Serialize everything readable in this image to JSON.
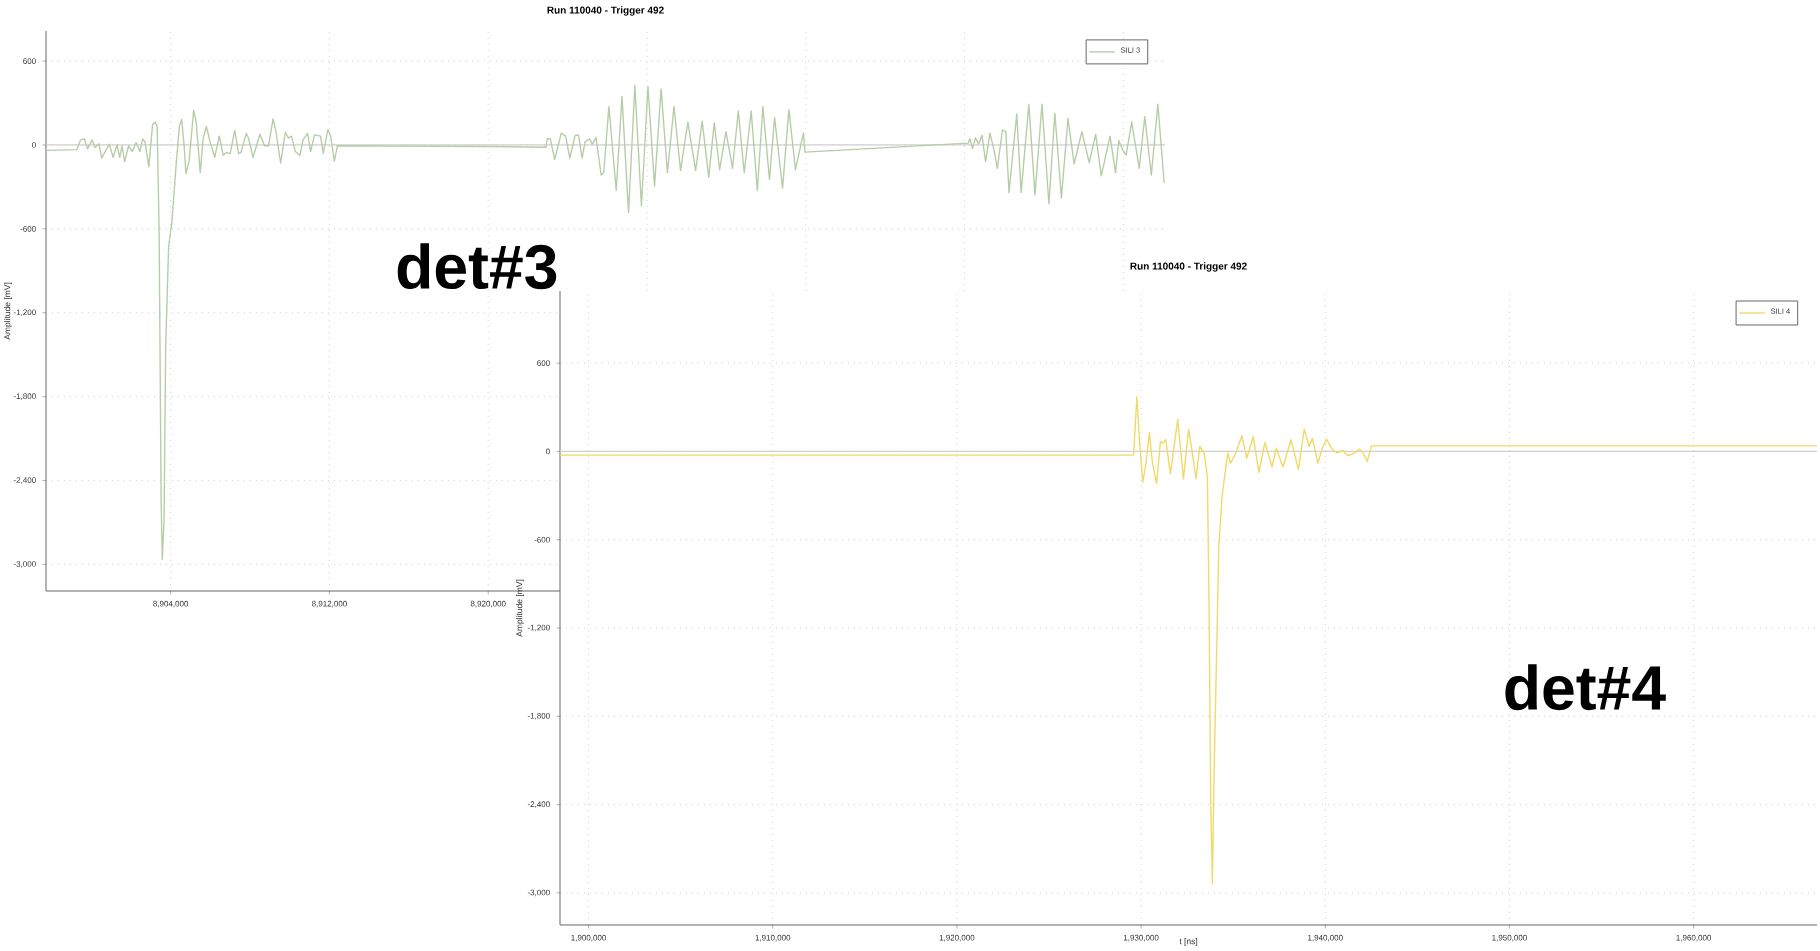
{
  "chart_data": [
    {
      "type": "line",
      "title": "Run 110040 - Trigger 492",
      "ylabel": "Amplitude [mV]",
      "annotations": [
        "det#3"
      ],
      "x": [
        8897720,
        8899270,
        8899460,
        8899650,
        8899810,
        8900040,
        8900190,
        8900390,
        8900520,
        8900910,
        8901100,
        8901300,
        8901430,
        8901550,
        8901680,
        8901880,
        8902070,
        8902260,
        8902450,
        8902590,
        8902710,
        8902900,
        8903090,
        8903230,
        8903320,
        8903420,
        8903520,
        8903580,
        8903670,
        8903750,
        8903900,
        8904060,
        8904290,
        8904440,
        8904560,
        8904680,
        8904770,
        8904930,
        8905160,
        8905290,
        8905490,
        8905640,
        8905800,
        8905990,
        8906220,
        8906450,
        8906650,
        8906800,
        8907000,
        8907230,
        8907420,
        8907540,
        8907810,
        8907920,
        8908150,
        8908500,
        8908730,
        8908930,
        8909160,
        8909310,
        8909540,
        8909780,
        8909930,
        8910090,
        8910280,
        8910510,
        8910670,
        8910900,
        8911050,
        8911250,
        8911550,
        8911690,
        8911920,
        8912060,
        8912250,
        8912400,
        8919940,
        8922910,
        8922980,
        8923130,
        8923350,
        8923680,
        8923900,
        8924110,
        8924380,
        8924550,
        8924730,
        8924880,
        8925100,
        8925250,
        8925430,
        8925690,
        8925820,
        8926080,
        8926450,
        8926740,
        8927070,
        8927390,
        8927720,
        8928050,
        8928380,
        8928710,
        8929030,
        8929360,
        8929690,
        8930060,
        8930450,
        8930780,
        8931110,
        8931390,
        8931660,
        8931980,
        8932310,
        8932600,
        8932900,
        8933250,
        8933560,
        8933840,
        8934170,
        8934430,
        8934830,
        8935150,
        8935480,
        8935880,
        8935960,
        8944180,
        8944270,
        8944400,
        8944550,
        8944710,
        8944880,
        8945060,
        8945280,
        8945490,
        8945650,
        8945910,
        8946080,
        8946240,
        8946630,
        8946850,
        8947240,
        8947550,
        8947900,
        8948250,
        8948550,
        8948880,
        8949210,
        8949520,
        8949910,
        8950280,
        8950610,
        8950890,
        8951330,
        8951610,
        8951770,
        8951990,
        8952140,
        8952420,
        8952800,
        8953080,
        8953410,
        8953740,
        8954060
      ],
      "series": [
        {
          "name": "SILI 3",
          "color": "#b5cda6",
          "values": [
            -39,
            -33,
            36,
            44,
            -28,
            36,
            -19,
            8,
            -94,
            6,
            -88,
            0,
            -88,
            -6,
            -121,
            -6,
            -47,
            17,
            -47,
            44,
            22,
            -157,
            146,
            165,
            132,
            -611,
            -2537,
            -2964,
            -2675,
            -1437,
            -721,
            -556,
            -116,
            132,
            182,
            -6,
            -206,
            -116,
            248,
            160,
            -198,
            50,
            132,
            22,
            -88,
            63,
            -74,
            -55,
            -61,
            105,
            -61,
            -55,
            83,
            50,
            -88,
            77,
            -6,
            -6,
            187,
            91,
            -129,
            91,
            50,
            63,
            -47,
            -74,
            36,
            83,
            -47,
            72,
            63,
            -61,
            110,
            63,
            -116,
            -6,
            -11,
            -16,
            44,
            44,
            -104,
            85,
            63,
            -95,
            69,
            69,
            -95,
            22,
            44,
            6,
            54,
            -215,
            -199,
            275,
            -325,
            347,
            -483,
            426,
            -436,
            417,
            -294,
            401,
            -199,
            275,
            -183,
            164,
            -183,
            170,
            -230,
            158,
            -177,
            95,
            -167,
            243,
            -199,
            243,
            -325,
            275,
            -246,
            196,
            -309,
            253,
            -177,
            85,
            -51,
            13,
            44,
            -25,
            51,
            6,
            69,
            -120,
            85,
            -41,
            -167,
            107,
            95,
            -341,
            221,
            -341,
            291,
            -357,
            291,
            -420,
            227,
            -379,
            189,
            -136,
            95,
            -126,
            76,
            -221,
            63,
            -199,
            32,
            -41,
            -73,
            164,
            -167,
            202,
            -215,
            291,
            -272
          ]
        }
      ],
      "xlim": [
        8897720,
        8954100
      ],
      "ylim": [
        -3190,
        815
      ],
      "xticks": [
        {
          "value": 8904000,
          "label": "8,904,000"
        },
        {
          "value": 8912000,
          "label": "8,912,000"
        },
        {
          "value": 8920000,
          "label": "8,920,000"
        },
        {
          "value": 8928000,
          "label": null
        },
        {
          "value": 8936000,
          "label": null
        },
        {
          "value": 8944000,
          "label": null
        },
        {
          "value": 8952000,
          "label": null
        }
      ],
      "yticks": [
        600,
        0,
        -600,
        {
          "value": -1200,
          "label": "-1,200"
        },
        {
          "value": -1800,
          "label": "-1,800"
        },
        {
          "value": -2400,
          "label": "-2,400"
        },
        {
          "value": -3000,
          "label": "-3,000"
        }
      ],
      "grid": true,
      "legend": "top right",
      "marker": "none",
      "line_style": "solid",
      "ref_lines": [
        {
          "axis": "y",
          "value": 0,
          "color": "#d0d0d0"
        }
      ]
    },
    {
      "type": "line",
      "title": "Run 110040 - Trigger 492",
      "xlabel": "t [ns]",
      "ylabel": "Amplitude [mV]",
      "annotations": [
        "det#4"
      ],
      "x": [
        1898450,
        1929590,
        1929770,
        1929910,
        1930090,
        1930270,
        1930450,
        1930620,
        1930840,
        1931050,
        1931190,
        1931340,
        1931590,
        1931990,
        1932300,
        1932580,
        1932760,
        1932980,
        1933190,
        1933420,
        1933600,
        1933690,
        1933780,
        1933870,
        1933950,
        1934080,
        1934220,
        1934400,
        1934580,
        1934700,
        1934850,
        1935110,
        1935470,
        1935740,
        1936090,
        1936400,
        1936720,
        1937110,
        1937340,
        1937700,
        1938140,
        1938540,
        1938860,
        1939120,
        1939300,
        1939600,
        1939840,
        1940070,
        1940370,
        1940640,
        1940960,
        1941210,
        1941530,
        1941850,
        1942030,
        1942280,
        1942510,
        1966700
      ],
      "series": [
        {
          "name": "SILI 4",
          "color": "#f0da66",
          "values": [
            -25,
            -25,
            371,
            79,
            -209,
            -79,
            128,
            -79,
            -218,
            67,
            56,
            79,
            -151,
            218,
            -187,
            151,
            11,
            -187,
            34,
            -11,
            -169,
            -1046,
            -2373,
            -2935,
            -2283,
            -1496,
            -641,
            -304,
            -124,
            -11,
            -79,
            -22,
            106,
            -45,
            101,
            -142,
            61,
            -106,
            22,
            -106,
            79,
            -124,
            151,
            34,
            90,
            -79,
            22,
            83,
            16,
            -11,
            7,
            -29,
            -16,
            16,
            -7,
            -67,
            38,
            38
          ]
        }
      ],
      "xlim": [
        1898450,
        1966700
      ],
      "ylim": [
        -3218,
        1090
      ],
      "xticks": [
        {
          "value": 1900000,
          "label": "1,900,000"
        },
        {
          "value": 1910000,
          "label": "1,910,000"
        },
        {
          "value": 1920000,
          "label": "1,920,000"
        },
        {
          "value": 1930000,
          "label": "1,930,000"
        },
        {
          "value": 1940000,
          "label": "1,940,000"
        },
        {
          "value": 1950000,
          "label": "1,950,000"
        },
        {
          "value": 1960000,
          "label": "1,960,000"
        }
      ],
      "yticks": [
        600,
        0,
        -600,
        {
          "value": -1200,
          "label": "-1,200"
        },
        {
          "value": -1800,
          "label": "-1,800"
        },
        {
          "value": -2400,
          "label": "-2,400"
        },
        {
          "value": -3000,
          "label": "-3,000"
        }
      ],
      "grid": true,
      "legend": "top right",
      "marker": "none",
      "line_style": "solid",
      "ref_lines": [
        {
          "axis": "y",
          "value": 0,
          "color": "#d0d0d0"
        }
      ]
    }
  ]
}
